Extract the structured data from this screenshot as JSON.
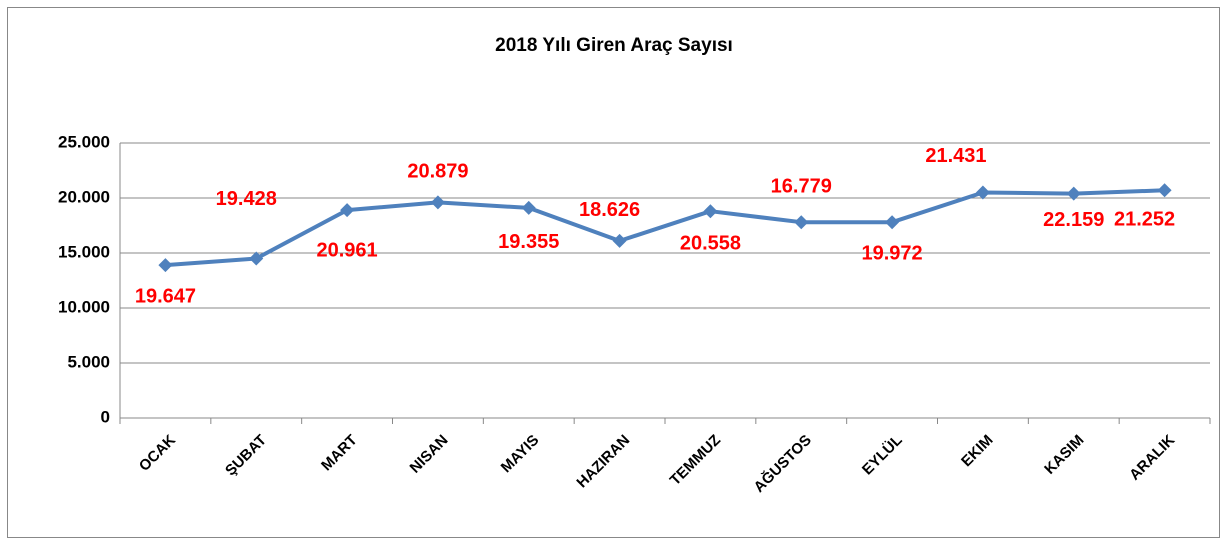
{
  "chart_data": {
    "type": "line",
    "title": "2018 Yılı Giren Araç Sayısı",
    "categories": [
      "OCAK",
      "ŞUBAT",
      "MART",
      "NISAN",
      "MAYIS",
      "HAZIRAN",
      "TEMMUZ",
      "AĞUSTOS",
      "EYLÜL",
      "EKIM",
      "KASIM",
      "ARALIK"
    ],
    "series": [
      {
        "name": "2018",
        "color": "#4f81bd",
        "values": [
          13900,
          14500,
          18900,
          19600,
          19100,
          16100,
          18800,
          17800,
          17800,
          20500,
          20400,
          20700
        ]
      }
    ],
    "annotations": [
      "19.647",
      "19.428",
      "20.961",
      "20.879",
      "19.355",
      "18.626",
      "20.558",
      "16.779",
      "19.972",
      "21.431",
      "22.159",
      "21.252"
    ],
    "annotation_color": "#ff0000",
    "ylim": [
      0,
      25000
    ],
    "yticks": [
      {
        "value": 0,
        "label": "0"
      },
      {
        "value": 5000,
        "label": "5.000"
      },
      {
        "value": 10000,
        "label": "10.000"
      },
      {
        "value": 15000,
        "label": "15.000"
      },
      {
        "value": 20000,
        "label": "20.000"
      },
      {
        "value": 25000,
        "label": "25.000"
      }
    ],
    "grid": true
  }
}
